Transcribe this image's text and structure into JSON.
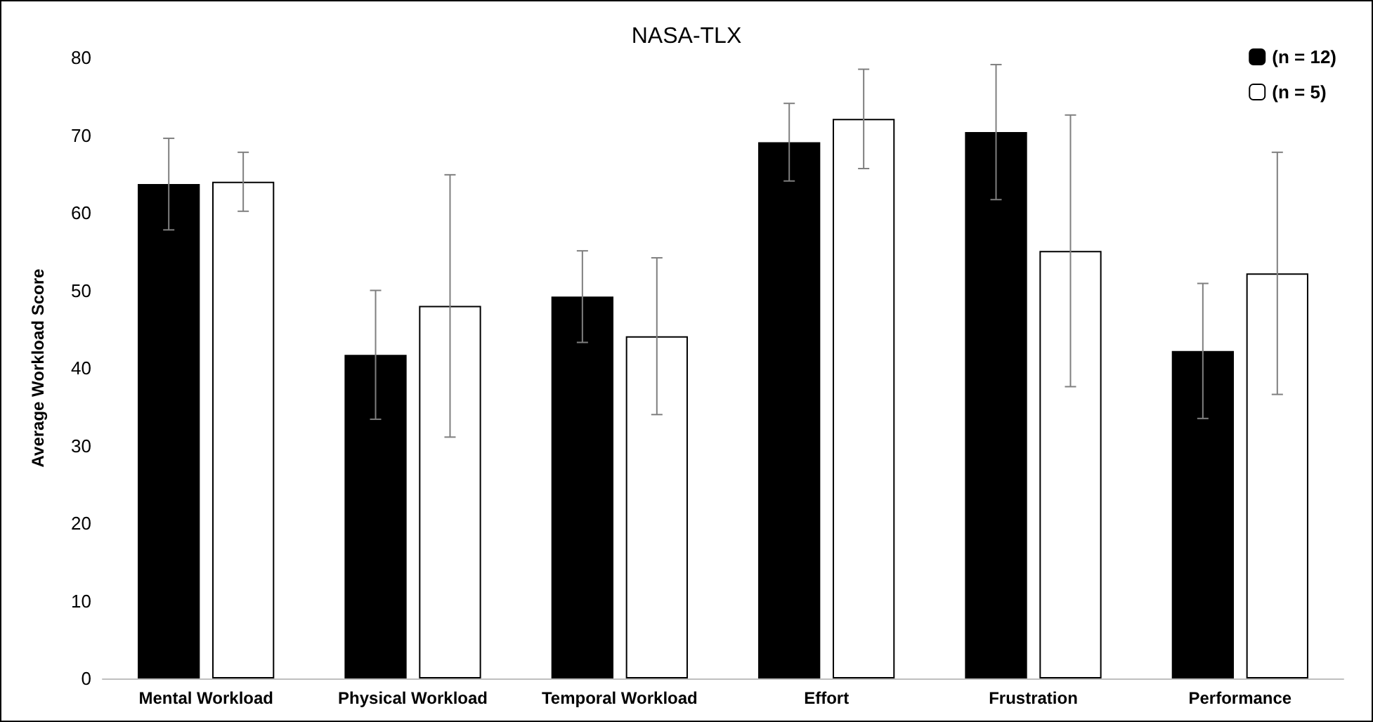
{
  "chart_data": {
    "type": "bar",
    "title": "NASA-TLX",
    "ylabel": "Average Workload Score",
    "categories": [
      "Mental Workload",
      "Physical Workload",
      "Temporal Workload",
      "Effort",
      "Frustration",
      "Performance"
    ],
    "series": [
      {
        "name": "(n = 12)",
        "color": "#000000",
        "values": [
          63.7,
          41.7,
          49.2,
          69.1,
          70.4,
          42.2
        ],
        "errors": [
          5.9,
          8.3,
          5.9,
          5,
          8.7,
          8.7
        ]
      },
      {
        "name": "(n = 5)",
        "color": "#ffffff",
        "values": [
          64,
          48,
          44.1,
          72.1,
          55.1,
          52.2
        ],
        "errors": [
          3.8,
          16.9,
          10.1,
          6.4,
          17.5,
          15.6
        ]
      }
    ],
    "ylim": [
      0,
      80
    ],
    "yticks": [
      0,
      10,
      20,
      30,
      40,
      50,
      60,
      70,
      80
    ],
    "grid": false,
    "legend": "top right"
  }
}
